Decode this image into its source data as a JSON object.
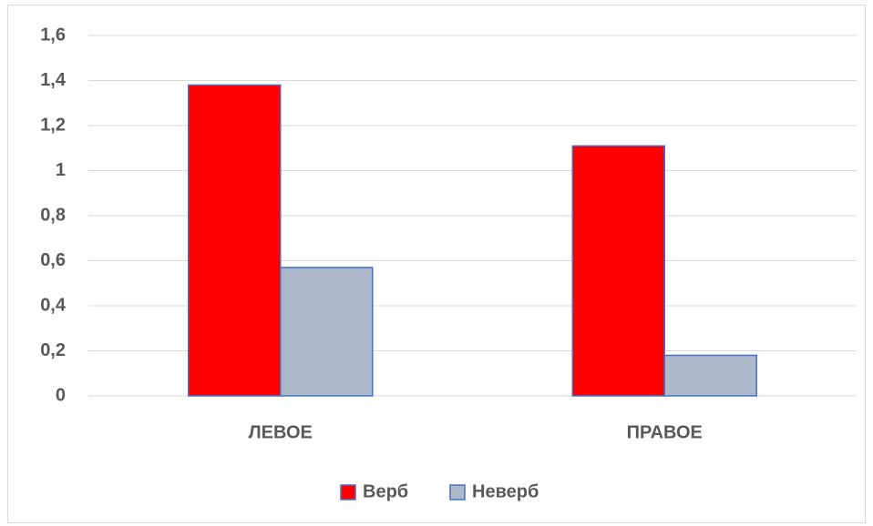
{
  "chart_data": {
    "type": "bar",
    "categories": [
      "ЛЕВОЕ",
      "ПРАВОЕ"
    ],
    "series": [
      {
        "name": "Верб",
        "color": "#ff0000",
        "values": [
          1.38,
          1.11
        ]
      },
      {
        "name": "Неверб",
        "color": "#adb9ca",
        "values": [
          0.57,
          0.18
        ]
      }
    ],
    "ylim": [
      0,
      1.6
    ],
    "yticks": [
      0,
      {
        "value": 0.2,
        "label": "0,2"
      },
      {
        "value": 0.4,
        "label": "0,4"
      },
      {
        "value": 0.6,
        "label": "0,6"
      },
      {
        "value": 0.8,
        "label": "0,8"
      },
      1,
      {
        "value": 1.2,
        "label": "1,2"
      },
      {
        "value": 1.4,
        "label": "1,4"
      },
      {
        "value": 1.6,
        "label": "1,6"
      }
    ],
    "grid": true,
    "legend": "bottom"
  }
}
